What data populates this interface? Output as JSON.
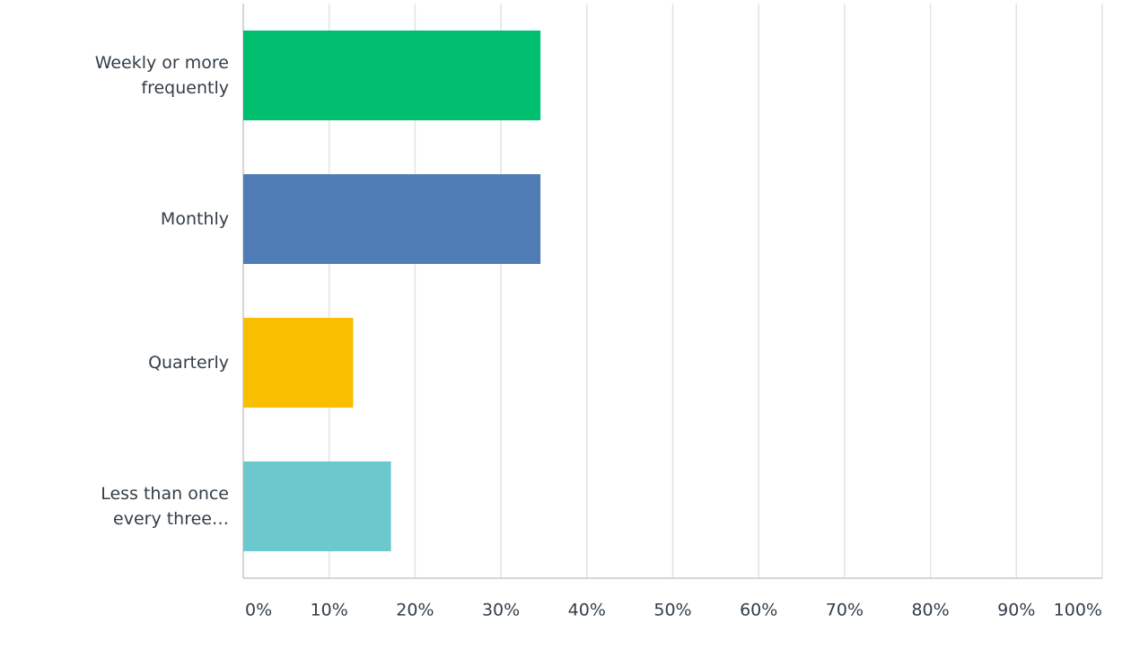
{
  "chart_data": {
    "type": "hbar",
    "categories": [
      "Weekly or more frequently",
      "Monthly",
      "Quarterly",
      "Less than once every three…"
    ],
    "values": [
      34.6,
      34.6,
      12.8,
      17.2
    ],
    "colors": [
      "#00bf6f",
      "#507cb6",
      "#f9be00",
      "#6bc8cd"
    ],
    "xlim": [
      0,
      100
    ],
    "xticks": [
      {
        "value": 0,
        "label": "0%"
      },
      {
        "value": 10,
        "label": "10%"
      },
      {
        "value": 20,
        "label": "20%"
      },
      {
        "value": 30,
        "label": "30%"
      },
      {
        "value": 40,
        "label": "40%"
      },
      {
        "value": 50,
        "label": "50%"
      },
      {
        "value": 60,
        "label": "60%"
      },
      {
        "value": 70,
        "label": "70%"
      },
      {
        "value": 80,
        "label": "80%"
      },
      {
        "value": 90,
        "label": "90%"
      },
      {
        "value": 100,
        "label": "100%"
      }
    ],
    "grid": true
  }
}
